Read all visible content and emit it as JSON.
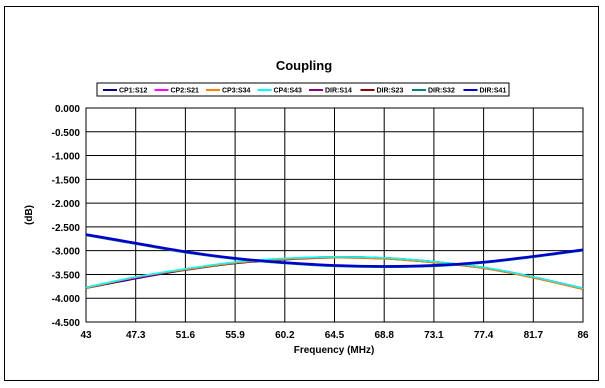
{
  "chart_data": {
    "type": "line",
    "title": "Coupling",
    "xlabel": "Frequency (MHz)",
    "ylabel": "(dB)",
    "x_tick_labels": [
      "43",
      "47.3",
      "51.6",
      "55.9",
      "60.2",
      "64.5",
      "68.8",
      "73.1",
      "77.4",
      "81.7",
      "86"
    ],
    "y_tick_labels": [
      "0.000",
      "-0.500",
      "-1.000",
      "-1.500",
      "-2.000",
      "-2.500",
      "-3.000",
      "-3.500",
      "-4.000",
      "-4.500"
    ],
    "xlim": [
      43,
      86
    ],
    "ylim": [
      -4.5,
      0
    ],
    "grid": "vertical and horizontal major gridlines",
    "legend_position": "top",
    "x": [
      43,
      47.3,
      51.6,
      55.9,
      60.2,
      64.5,
      68.8,
      73.1,
      77.4,
      81.7,
      86
    ],
    "series": [
      {
        "name": "CP1:S12",
        "color": "#00008B",
        "values": [
          -3.78,
          -3.58,
          -3.4,
          -3.26,
          -3.18,
          -3.14,
          -3.16,
          -3.24,
          -3.36,
          -3.56,
          -3.8
        ]
      },
      {
        "name": "CP2:S21",
        "color": "#FF00FF",
        "values": [
          -3.78,
          -3.57,
          -3.39,
          -3.25,
          -3.17,
          -3.14,
          -3.16,
          -3.24,
          -3.36,
          -3.56,
          -3.8
        ]
      },
      {
        "name": "CP3:S34",
        "color": "#FF8000",
        "values": [
          -3.79,
          -3.56,
          -3.4,
          -3.26,
          -3.18,
          -3.15,
          -3.17,
          -3.25,
          -3.37,
          -3.57,
          -3.81
        ]
      },
      {
        "name": "CP4:S43",
        "color": "#00FFFF",
        "values": [
          -3.77,
          -3.55,
          -3.38,
          -3.24,
          -3.16,
          -3.13,
          -3.15,
          -3.23,
          -3.35,
          -3.55,
          -3.79
        ]
      },
      {
        "name": "DIR:S14",
        "color": "#800080",
        "values": [
          -2.68,
          -2.86,
          -3.04,
          -3.17,
          -3.26,
          -3.32,
          -3.34,
          -3.32,
          -3.25,
          -3.13,
          -2.99
        ]
      },
      {
        "name": "DIR:S23",
        "color": "#8B0000",
        "values": [
          -2.67,
          -2.85,
          -3.03,
          -3.17,
          -3.26,
          -3.32,
          -3.34,
          -3.32,
          -3.25,
          -3.13,
          -2.99
        ]
      },
      {
        "name": "DIR:S32",
        "color": "#008080",
        "values": [
          -2.68,
          -2.86,
          -3.04,
          -3.18,
          -3.27,
          -3.33,
          -3.35,
          -3.33,
          -3.26,
          -3.14,
          -3.0
        ]
      },
      {
        "name": "DIR:S41",
        "color": "#0000CD",
        "values": [
          -2.66,
          -2.84,
          -3.02,
          -3.16,
          -3.25,
          -3.31,
          -3.33,
          -3.31,
          -3.24,
          -3.12,
          -2.98
        ]
      }
    ]
  }
}
